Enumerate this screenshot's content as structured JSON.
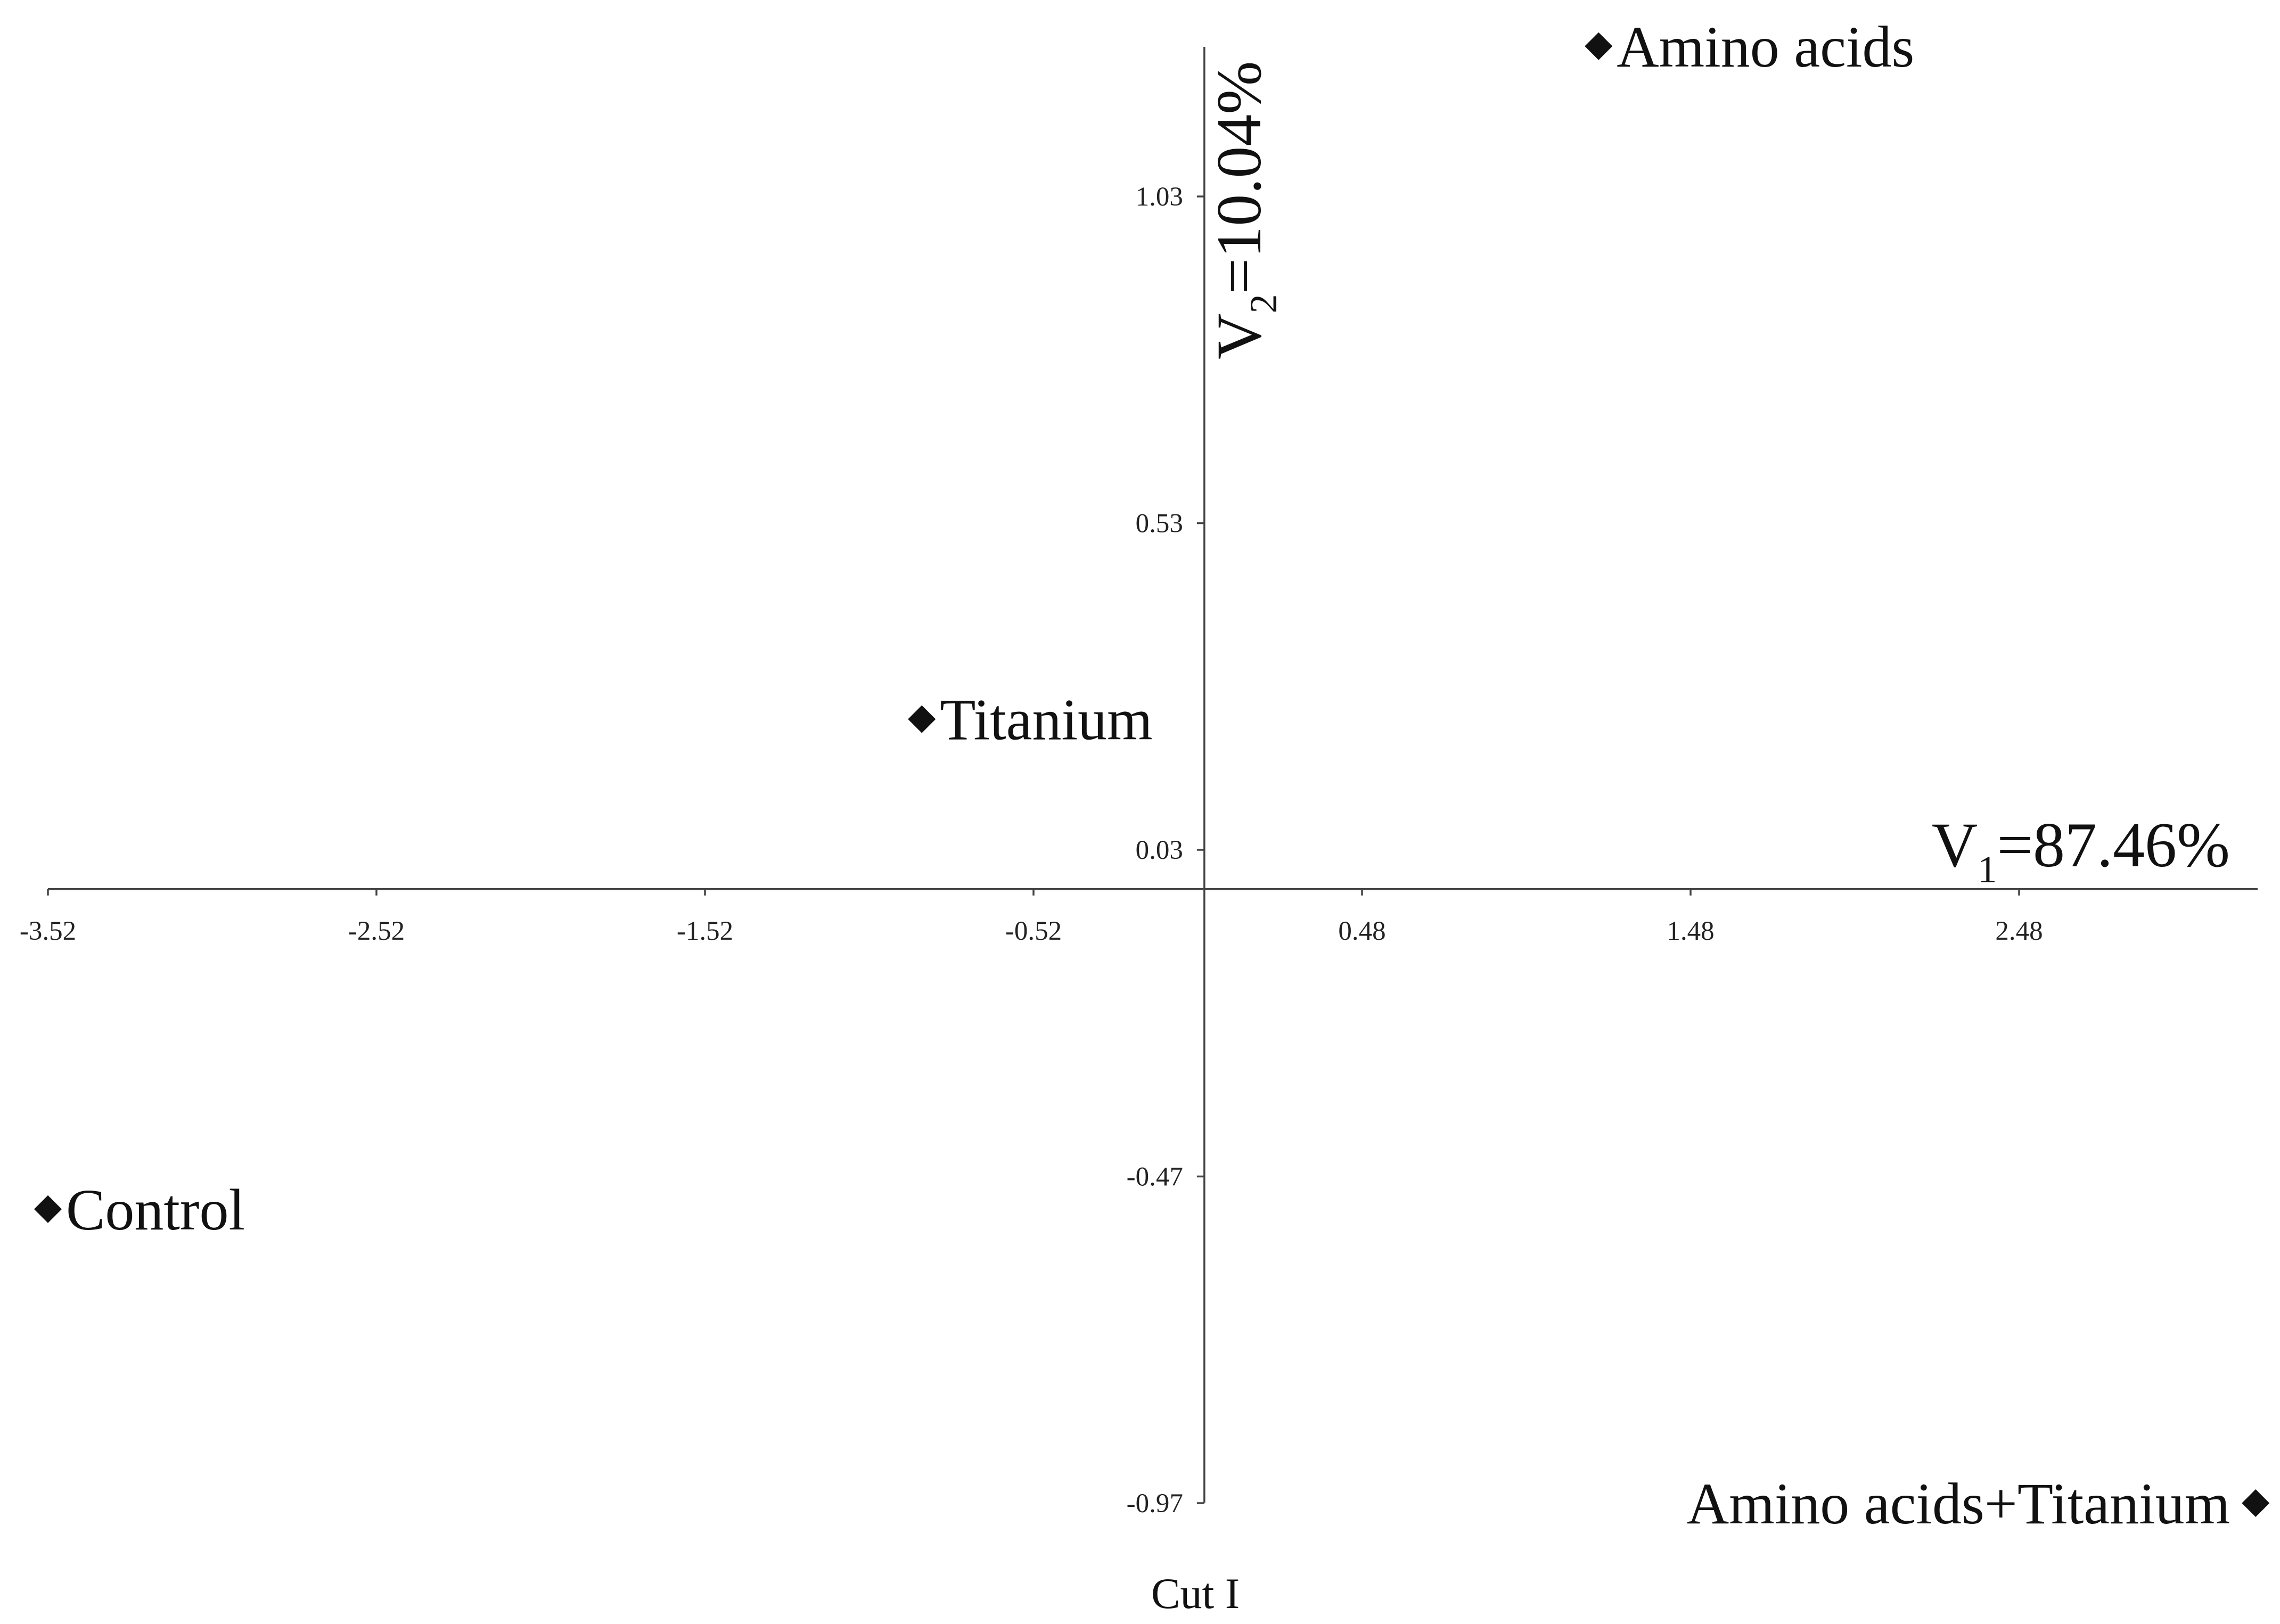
{
  "chart_data": {
    "type": "scatter",
    "caption": "Cut I",
    "xaxis": {
      "label_main": "V",
      "label_sub": "1",
      "label_rest": "=87.46%",
      "ticks": [
        -3.52,
        -2.52,
        -1.52,
        -0.52,
        0.48,
        1.48,
        2.48
      ],
      "tick_labels": [
        "-3.52",
        "-2.52",
        "-1.52",
        "-0.52",
        "0.48",
        "1.48",
        "2.48"
      ],
      "range": [
        -3.52,
        3.2
      ]
    },
    "yaxis": {
      "label_main": "V",
      "label_sub": "2",
      "label_rest": "=10.04%",
      "ticks": [
        -0.97,
        -0.47,
        0.03,
        0.53,
        1.03
      ],
      "tick_labels": [
        "-0.97",
        "-0.47",
        "0.03",
        "0.53",
        "1.03"
      ],
      "range": [
        -0.97,
        1.26
      ]
    },
    "crossing": {
      "x": 0.0,
      "y": 0.0
    },
    "points": [
      {
        "name": "Amino acids",
        "x": 1.2,
        "y": 1.26,
        "label_side": "right"
      },
      {
        "name": "Titanium",
        "x": -0.86,
        "y": 0.23,
        "label_side": "right"
      },
      {
        "name": "Control",
        "x": -3.52,
        "y": -0.52,
        "label_side": "right"
      },
      {
        "name": "Amino acids+Titanium",
        "x": 3.2,
        "y": -0.97,
        "label_side": "left"
      }
    ],
    "grid": false,
    "legend": "none",
    "marker": "diamond",
    "color": "#111111"
  }
}
